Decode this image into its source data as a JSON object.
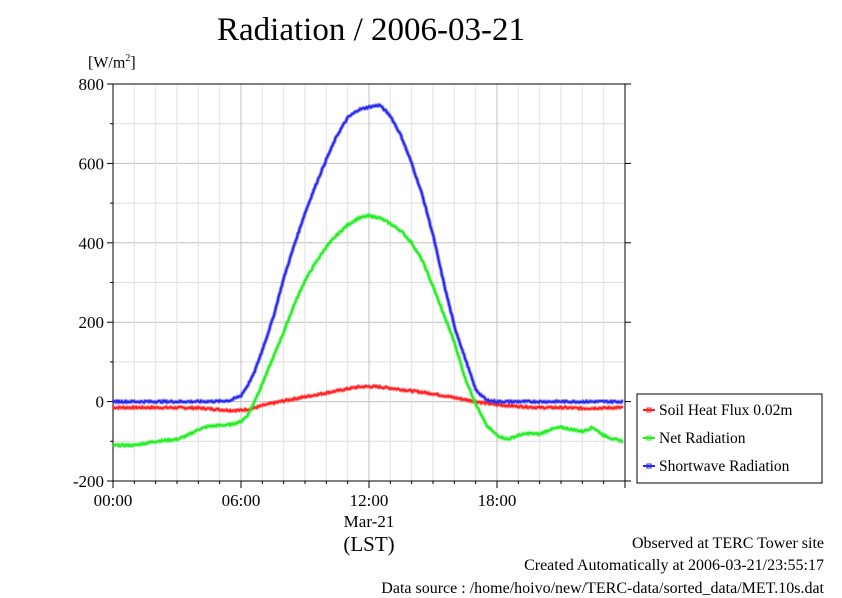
{
  "title": "Radiation / 2006-03-21",
  "unit_label": "[W/m",
  "unit_sup": "2",
  "unit_close": "]",
  "x_date_label": "Mar-21",
  "x_axis_label": "(LST)",
  "footer": {
    "line1": "Observed at TERC Tower site",
    "line2": "Created Automatically at 2006-03-21/23:55:17",
    "line3": "Data source : /home/hoivo/new/TERC-data/sorted_data/MET.10s.dat"
  },
  "colors": {
    "soil": "#ff2020",
    "net": "#22ee22",
    "shortwave": "#2828ee",
    "grid": "#c0c0c0"
  },
  "chart_data": {
    "type": "line",
    "x_unit": "hour (LST)",
    "xlim": [
      0,
      24
    ],
    "ylim": [
      -200,
      800
    ],
    "y_ticks": [
      -200,
      0,
      200,
      400,
      600,
      800
    ],
    "y_tick_labels": [
      "-200",
      "0",
      "200",
      "400",
      "600",
      "800"
    ],
    "x_ticks": [
      0,
      6,
      12,
      18
    ],
    "x_tick_labels": [
      "00:00",
      "06:00",
      "12:00",
      "18:00"
    ],
    "grid": true,
    "legend_placement": "right",
    "series": [
      {
        "name": "Soil Heat Flux 0.02m",
        "color_key": "soil",
        "x": [
          0,
          2,
          4,
          5,
          5.5,
          6,
          6.5,
          7,
          8,
          9,
          10,
          11,
          11.5,
          12,
          12.5,
          13,
          14,
          15,
          16,
          17,
          18,
          19,
          20,
          21,
          22,
          23,
          23.9
        ],
        "y": [
          -15,
          -15,
          -16,
          -20,
          -22,
          -22,
          -18,
          -10,
          2,
          12,
          22,
          32,
          37,
          38,
          37,
          34,
          27,
          20,
          10,
          0,
          -8,
          -12,
          -15,
          -15,
          -17,
          -16,
          -15
        ]
      },
      {
        "name": "Net Radiation",
        "color_key": "net",
        "x": [
          0,
          1,
          2,
          3,
          3.5,
          4,
          4.5,
          5,
          5.5,
          6,
          6.3,
          6.5,
          7,
          7.5,
          8,
          8.5,
          9,
          9.5,
          10,
          10.5,
          11,
          11.5,
          12,
          12.5,
          13,
          13.5,
          14,
          14.5,
          15,
          15.5,
          16,
          16.5,
          17,
          17.5,
          18,
          18.5,
          19,
          19.5,
          20,
          20.5,
          21,
          21.5,
          22,
          22.5,
          23,
          23.5,
          23.9
        ],
        "y": [
          -110,
          -110,
          -100,
          -95,
          -85,
          -70,
          -62,
          -60,
          -58,
          -50,
          -35,
          -15,
          45,
          110,
          175,
          245,
          305,
          350,
          390,
          420,
          445,
          462,
          468,
          463,
          448,
          430,
          400,
          355,
          290,
          220,
          150,
          60,
          -5,
          -60,
          -85,
          -95,
          -85,
          -80,
          -82,
          -70,
          -65,
          -70,
          -75,
          -65,
          -85,
          -95,
          -100
        ]
      },
      {
        "name": "Shortwave Radiation",
        "color_key": "shortwave",
        "x": [
          0,
          2,
          4,
          5,
          5.5,
          6,
          6.3,
          6.6,
          7,
          7.5,
          8,
          8.5,
          9,
          9.5,
          10,
          10.5,
          11,
          11.5,
          12,
          12.5,
          13,
          13.5,
          14,
          14.5,
          15,
          15.5,
          16,
          16.5,
          17,
          17.5,
          18,
          20,
          22,
          23.9
        ],
        "y": [
          0,
          0,
          0,
          1,
          3,
          15,
          40,
          70,
          130,
          210,
          310,
          395,
          475,
          545,
          610,
          670,
          715,
          735,
          742,
          747,
          720,
          670,
          600,
          520,
          420,
          300,
          190,
          110,
          30,
          4,
          0,
          0,
          0,
          0
        ]
      }
    ]
  }
}
